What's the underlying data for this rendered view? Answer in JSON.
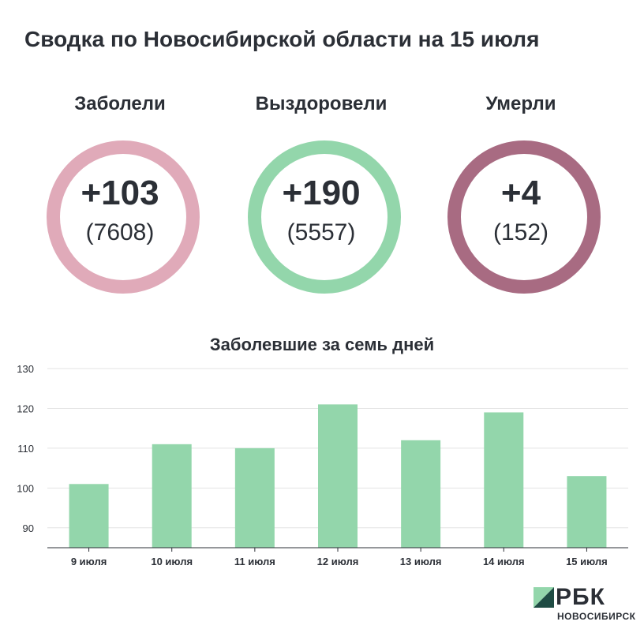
{
  "title": "Сводка по Новосибирской области на 15 июля",
  "stats": [
    {
      "label": "Заболели",
      "delta": "+103",
      "total": "(7608)",
      "color": "#e0aab9"
    },
    {
      "label": "Выздоровели",
      "delta": "+190",
      "total": "(5557)",
      "color": "#93d6ab"
    },
    {
      "label": "Умерли",
      "delta": "+4",
      "total": "(152)",
      "color": "#a86b82"
    }
  ],
  "chart_data": {
    "type": "bar",
    "title": "Заболевшие за семь дней",
    "categories": [
      "9 июля",
      "10 июля",
      "11 июля",
      "12 июля",
      "13 июля",
      "14 июля",
      "15 июля"
    ],
    "values": [
      101,
      111,
      110,
      121,
      112,
      119,
      103
    ],
    "ylim": [
      85,
      130
    ],
    "yticks": [
      90,
      100,
      110,
      120,
      130
    ],
    "grid": true,
    "bar_color": "#93d6ab",
    "xlabel": "",
    "ylabel": ""
  },
  "logo": {
    "text": "РБК",
    "sub": "НОВОСИБИРСК"
  }
}
